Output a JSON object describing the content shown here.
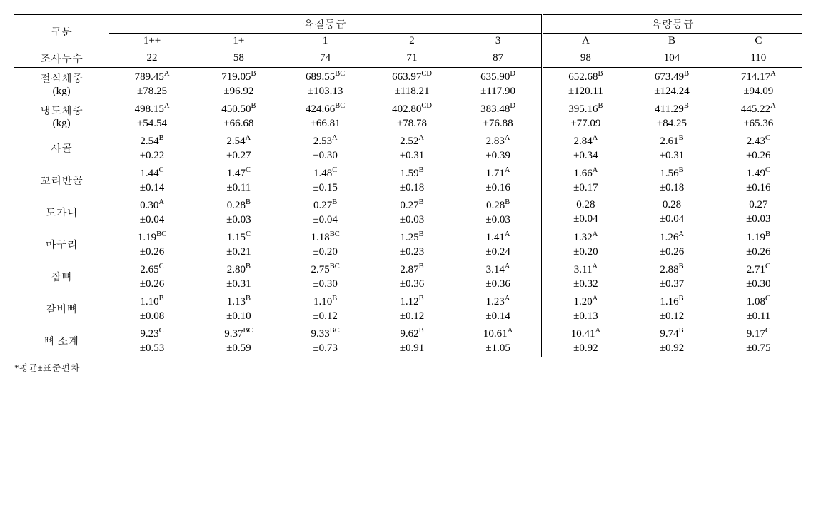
{
  "table": {
    "rowHeader": "구분",
    "groupHeaders": {
      "quality": "육질등급",
      "quantity": "육량등급"
    },
    "cols": {
      "quality": [
        "1++",
        "1+",
        "1",
        "2",
        "3"
      ],
      "quantity": [
        "A",
        "B",
        "C"
      ]
    },
    "countLabel": "조사두수",
    "counts": {
      "q": [
        "22",
        "58",
        "74",
        "71",
        "87"
      ],
      "y": [
        "98",
        "104",
        "110"
      ]
    },
    "rows": [
      {
        "label": "절식체중\n(kg)",
        "q": [
          {
            "v": "789.45",
            "s": "A",
            "sd": "±78.25"
          },
          {
            "v": "719.05",
            "s": "B",
            "sd": "±96.92"
          },
          {
            "v": "689.55",
            "s": "BC",
            "sd": "±103.13"
          },
          {
            "v": "663.97",
            "s": "CD",
            "sd": "±118.21"
          },
          {
            "v": "635.90",
            "s": "D",
            "sd": "±117.90"
          }
        ],
        "y": [
          {
            "v": "652.68",
            "s": "B",
            "sd": "±120.11"
          },
          {
            "v": "673.49",
            "s": "B",
            "sd": "±124.24"
          },
          {
            "v": "714.17",
            "s": "A",
            "sd": "±94.09"
          }
        ]
      },
      {
        "label": "냉도체중\n(kg)",
        "q": [
          {
            "v": "498.15",
            "s": "A",
            "sd": "±54.54"
          },
          {
            "v": "450.50",
            "s": "B",
            "sd": "±66.68"
          },
          {
            "v": "424.66",
            "s": "BC",
            "sd": "±66.81"
          },
          {
            "v": "402.80",
            "s": "CD",
            "sd": "±78.78"
          },
          {
            "v": "383.48",
            "s": "D",
            "sd": "±76.88"
          }
        ],
        "y": [
          {
            "v": "395.16",
            "s": "B",
            "sd": "±77.09"
          },
          {
            "v": "411.29",
            "s": "B",
            "sd": "±84.25"
          },
          {
            "v": "445.22",
            "s": "A",
            "sd": "±65.36"
          }
        ]
      },
      {
        "label": "사골",
        "q": [
          {
            "v": "2.54",
            "s": "B",
            "sd": "±0.22"
          },
          {
            "v": "2.54",
            "s": "A",
            "sd": "±0.27"
          },
          {
            "v": "2.53",
            "s": "A",
            "sd": "±0.30"
          },
          {
            "v": "2.52",
            "s": "A",
            "sd": "±0.31"
          },
          {
            "v": "2.83",
            "s": "A",
            "sd": "±0.39"
          }
        ],
        "y": [
          {
            "v": "2.84",
            "s": "A",
            "sd": "±0.34"
          },
          {
            "v": "2.61",
            "s": "B",
            "sd": "±0.31"
          },
          {
            "v": "2.43",
            "s": "C",
            "sd": "±0.26"
          }
        ]
      },
      {
        "label": "꼬리반골",
        "q": [
          {
            "v": "1.44",
            "s": "C",
            "sd": "±0.14"
          },
          {
            "v": "1.47",
            "s": "C",
            "sd": "±0.11"
          },
          {
            "v": "1.48",
            "s": "C",
            "sd": "±0.15"
          },
          {
            "v": "1.59",
            "s": "B",
            "sd": "±0.18"
          },
          {
            "v": "1.71",
            "s": "A",
            "sd": "±0.16"
          }
        ],
        "y": [
          {
            "v": "1.66",
            "s": "A",
            "sd": "±0.17"
          },
          {
            "v": "1.56",
            "s": "B",
            "sd": "±0.18"
          },
          {
            "v": "1.49",
            "s": "C",
            "sd": "±0.16"
          }
        ]
      },
      {
        "label": "도가니",
        "q": [
          {
            "v": "0.30",
            "s": "A",
            "sd": "±0.04"
          },
          {
            "v": "0.28",
            "s": "B",
            "sd": "±0.03"
          },
          {
            "v": "0.27",
            "s": "B",
            "sd": "±0.04"
          },
          {
            "v": "0.27",
            "s": "B",
            "sd": "±0.03"
          },
          {
            "v": "0.28",
            "s": "B",
            "sd": "±0.03"
          }
        ],
        "y": [
          {
            "v": "0.28",
            "s": "",
            "sd": "±0.04"
          },
          {
            "v": "0.28",
            "s": "",
            "sd": "±0.04"
          },
          {
            "v": "0.27",
            "s": "",
            "sd": "±0.03"
          }
        ]
      },
      {
        "label": "마구리",
        "q": [
          {
            "v": "1.19",
            "s": "BC",
            "sd": "±0.26"
          },
          {
            "v": "1.15",
            "s": "C",
            "sd": "±0.21"
          },
          {
            "v": "1.18",
            "s": "BC",
            "sd": "±0.20"
          },
          {
            "v": "1.25",
            "s": "B",
            "sd": "±0.23"
          },
          {
            "v": "1.41",
            "s": "A",
            "sd": "±0.24"
          }
        ],
        "y": [
          {
            "v": "1.32",
            "s": "A",
            "sd": "±0.20"
          },
          {
            "v": "1.26",
            "s": "A",
            "sd": "±0.26"
          },
          {
            "v": "1.19",
            "s": "B",
            "sd": "±0.26"
          }
        ]
      },
      {
        "label": "잡뼈",
        "q": [
          {
            "v": "2.65",
            "s": "C",
            "sd": "±0.26"
          },
          {
            "v": "2.80",
            "s": "B",
            "sd": "±0.31"
          },
          {
            "v": "2.75",
            "s": "BC",
            "sd": "±0.30"
          },
          {
            "v": "2.87",
            "s": "B",
            "sd": "±0.36"
          },
          {
            "v": "3.14",
            "s": "A",
            "sd": "±0.36"
          }
        ],
        "y": [
          {
            "v": "3.11",
            "s": "A",
            "sd": "±0.32"
          },
          {
            "v": "2.88",
            "s": "B",
            "sd": "±0.37"
          },
          {
            "v": "2.71",
            "s": "C",
            "sd": "±0.30"
          }
        ]
      },
      {
        "label": "갈비뼈",
        "q": [
          {
            "v": "1.10",
            "s": "B",
            "sd": "±0.08"
          },
          {
            "v": "1.13",
            "s": "B",
            "sd": "±0.10"
          },
          {
            "v": "1.10",
            "s": "B",
            "sd": "±0.12"
          },
          {
            "v": "1.12",
            "s": "B",
            "sd": "±0.12"
          },
          {
            "v": "1.23",
            "s": "A",
            "sd": "±0.14"
          }
        ],
        "y": [
          {
            "v": "1.20",
            "s": "A",
            "sd": "±0.13"
          },
          {
            "v": "1.16",
            "s": "B",
            "sd": "±0.12"
          },
          {
            "v": "1.08",
            "s": "C",
            "sd": "±0.11"
          }
        ]
      },
      {
        "label": "뼈 소계",
        "q": [
          {
            "v": "9.23",
            "s": "C",
            "sd": "±0.53"
          },
          {
            "v": "9.37",
            "s": "BC",
            "sd": "±0.59"
          },
          {
            "v": "9.33",
            "s": "BC",
            "sd": "±0.73"
          },
          {
            "v": "9.62",
            "s": "B",
            "sd": "±0.91"
          },
          {
            "v": "10.61",
            "s": "A",
            "sd": "±1.05"
          }
        ],
        "y": [
          {
            "v": "10.41",
            "s": "A",
            "sd": "±0.92"
          },
          {
            "v": "9.74",
            "s": "B",
            "sd": "±0.92"
          },
          {
            "v": "9.17",
            "s": "C",
            "sd": "±0.75"
          }
        ]
      }
    ],
    "footnote": "*평균±표준편차"
  },
  "style": {
    "fontFamily": "Times New Roman, Batang, serif",
    "fontSize": 15,
    "textColor": "#000000",
    "bgColor": "#ffffff",
    "ruleColor": "#000000",
    "doubleRuleWidth": 3,
    "topRuleWidth": 1.5,
    "thinRuleWidth": 1
  }
}
